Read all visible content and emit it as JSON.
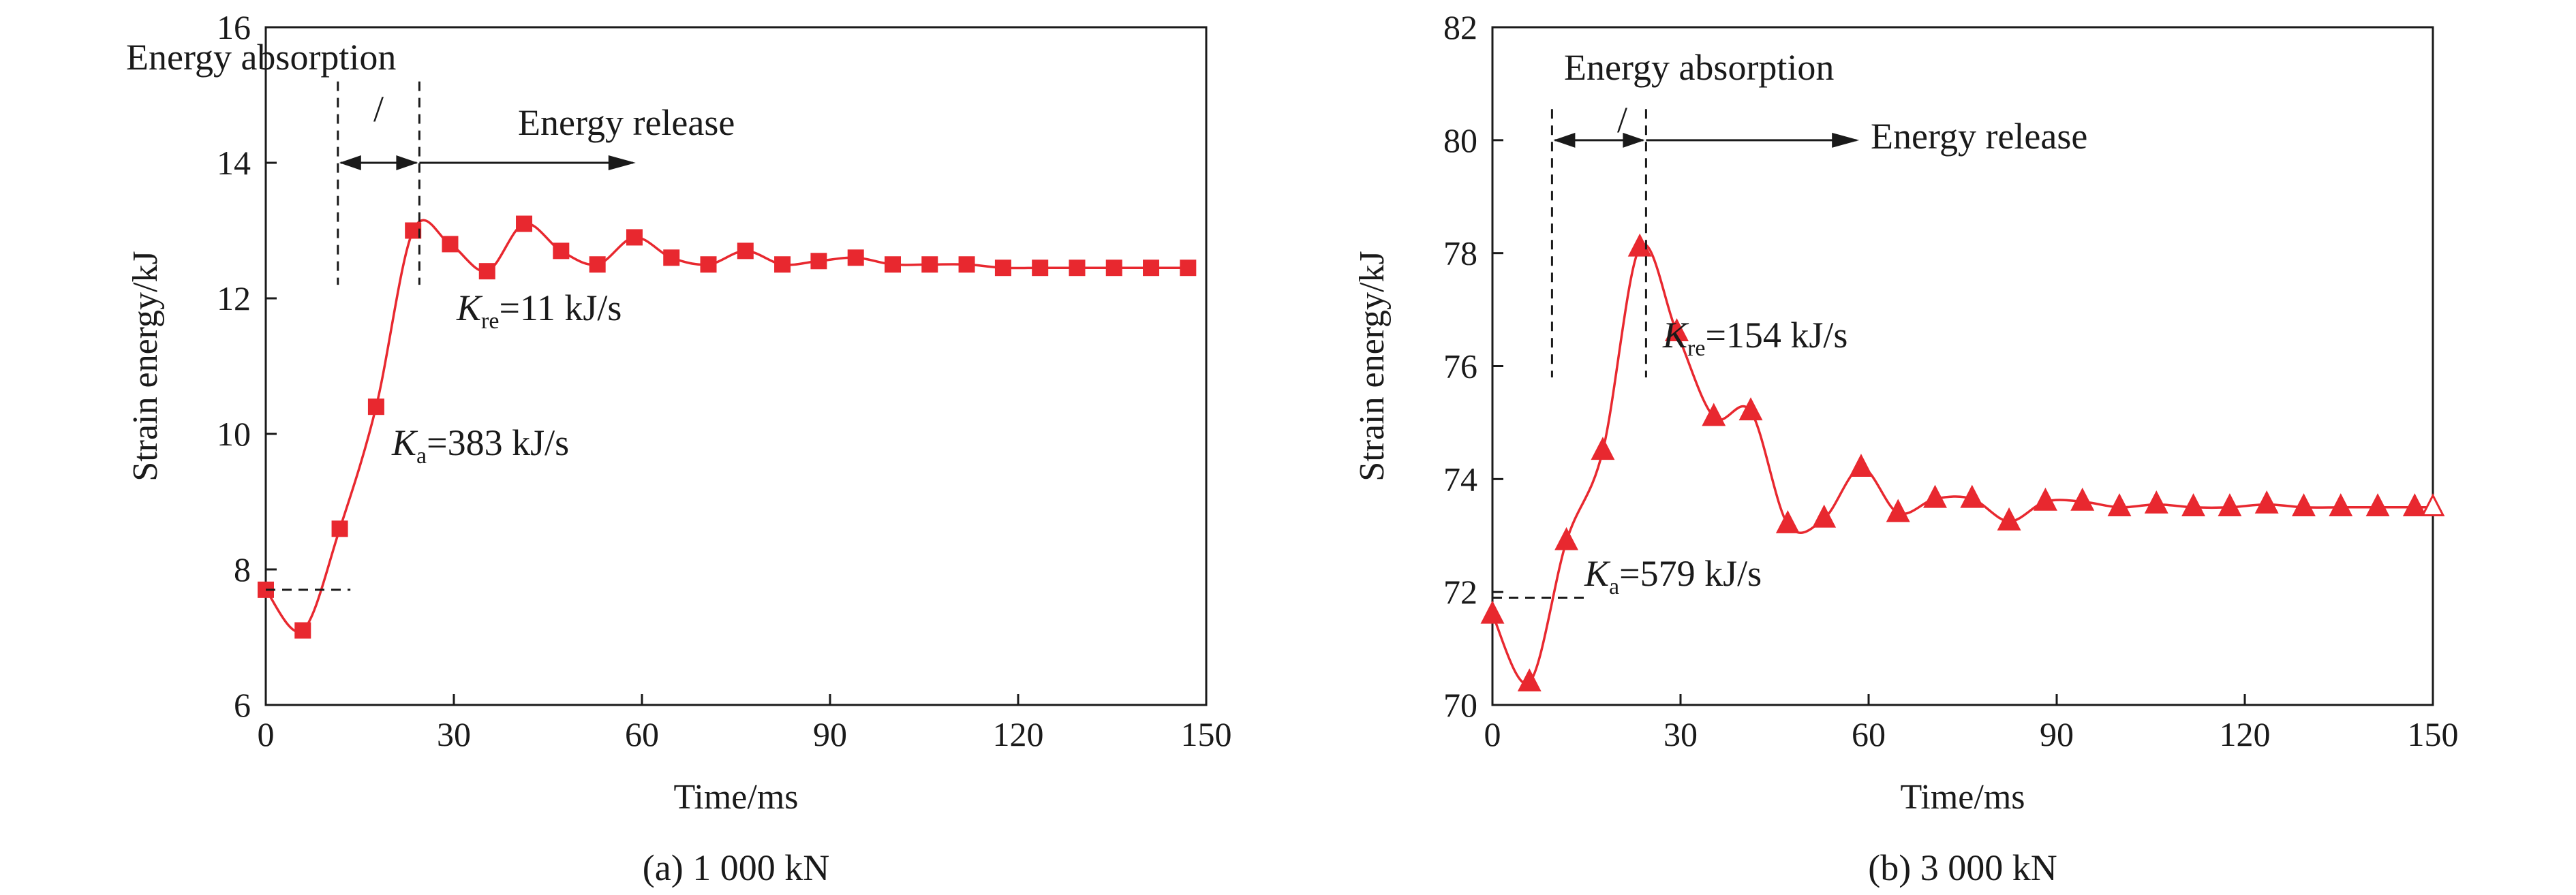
{
  "chart_data": [
    {
      "type": "line",
      "caption": "(a) 1 000 kN",
      "xlabel": "Time/ms",
      "ylabel": "Strain energy/kJ",
      "xlim": [
        0,
        150
      ],
      "ylim": [
        6,
        16
      ],
      "xticks": [
        "0",
        "30",
        "60",
        "90",
        "120",
        "150"
      ],
      "yticks": [
        "6",
        "8",
        "10",
        "12",
        "14",
        "16"
      ],
      "marker": "square",
      "color": "#e8282f",
      "series": [
        {
          "x": [
            0,
            5.9,
            11.8,
            17.6,
            23.5,
            29.4,
            35.3,
            41.2,
            47.1,
            52.9,
            58.8,
            64.7,
            70.6,
            76.5,
            82.4,
            88.2,
            94.1,
            100,
            105.9,
            111.8,
            117.6,
            123.5,
            129.4,
            135.3,
            141.2,
            147.1
          ],
          "y": [
            7.7,
            7.1,
            8.6,
            10.4,
            13.0,
            12.8,
            12.4,
            13.1,
            12.7,
            12.5,
            12.9,
            12.6,
            12.5,
            12.7,
            12.5,
            12.55,
            12.6,
            12.5,
            12.5,
            12.5,
            12.45,
            12.45,
            12.45,
            12.45,
            12.45,
            12.45
          ]
        }
      ],
      "annotations": {
        "absorption_label": "Energy absorption",
        "release_label": "Energy release",
        "slash": "/",
        "k_absorb": {
          "symbol": "K",
          "subscript": "a",
          "text": "=383 kJ/s"
        },
        "k_release": {
          "symbol": "K",
          "subscript": "re",
          "text": "=11 kJ/s"
        }
      }
    },
    {
      "type": "line",
      "caption": "(b) 3 000 kN",
      "xlabel": "Time/ms",
      "ylabel": "Strain energy/kJ",
      "xlim": [
        0,
        150
      ],
      "ylim": [
        70,
        82
      ],
      "xticks": [
        "0",
        "30",
        "60",
        "90",
        "120",
        "150"
      ],
      "yticks": [
        "70",
        "72",
        "74",
        "76",
        "78",
        "80",
        "82"
      ],
      "marker": "triangle",
      "color": "#e8282f",
      "series": [
        {
          "x": [
            0,
            5.9,
            11.8,
            17.6,
            23.5,
            29.4,
            35.3,
            41.2,
            47.1,
            52.9,
            58.8,
            64.7,
            70.6,
            76.5,
            82.4,
            88.2,
            94.1,
            100,
            105.9,
            111.8,
            117.6,
            123.5,
            129.4,
            135.3,
            141.2,
            147.1,
            150
          ],
          "y": [
            71.6,
            70.4,
            72.9,
            74.5,
            78.1,
            76.6,
            75.1,
            75.2,
            73.2,
            73.3,
            74.2,
            73.4,
            73.65,
            73.65,
            73.25,
            73.6,
            73.6,
            73.5,
            73.55,
            73.5,
            73.5,
            73.55,
            73.5,
            73.5,
            73.5,
            73.5,
            73.5
          ]
        }
      ],
      "annotations": {
        "absorption_label": "Energy absorption",
        "release_label": "Energy release",
        "slash": "/",
        "k_absorb": {
          "symbol": "K",
          "subscript": "a",
          "text": "=579 kJ/s"
        },
        "k_release": {
          "symbol": "K",
          "subscript": "re",
          "text": "=154 kJ/s"
        }
      }
    }
  ]
}
